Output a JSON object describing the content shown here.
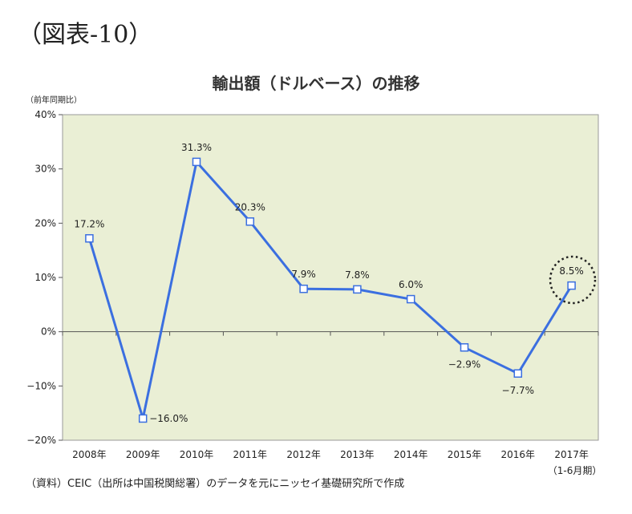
{
  "figure_label": "（図表-10）",
  "source_note": "（資料）CEIC（出所は中国税関総署）のデータを元にニッセイ基礎研究所で作成",
  "chart_data": {
    "type": "line",
    "title": "輸出額（ドルベース）の推移",
    "ylabel": "（前年同期比）",
    "xlabel": "",
    "categories": [
      "2008年",
      "2009年",
      "2010年",
      "2011年",
      "2012年",
      "2013年",
      "2014年",
      "2015年",
      "2016年",
      "2017年"
    ],
    "category_sublabels": [
      "",
      "",
      "",
      "",
      "",
      "",
      "",
      "",
      "",
      "（1-6月期）"
    ],
    "series": [
      {
        "values": [
          17.2,
          -16.0,
          31.3,
          20.3,
          7.9,
          7.8,
          6.0,
          -2.9,
          -7.7,
          8.5
        ]
      }
    ],
    "data_labels": [
      "17.2%",
      "−16.0%",
      "31.3%",
      "20.3%",
      "7.9%",
      "7.8%",
      "6.0%",
      "−2.9%",
      "−7.7%",
      "8.5%"
    ],
    "y_ticks": [
      "40%",
      "30%",
      "20%",
      "10%",
      "0%",
      "−10%",
      "−20%"
    ],
    "ylim": [
      -20,
      40
    ],
    "grid": false,
    "highlight": "2017年",
    "colors": {
      "line": "#3b6fe0",
      "plot_background": "#eaefd5",
      "marker_fill": "#ffffff"
    }
  }
}
